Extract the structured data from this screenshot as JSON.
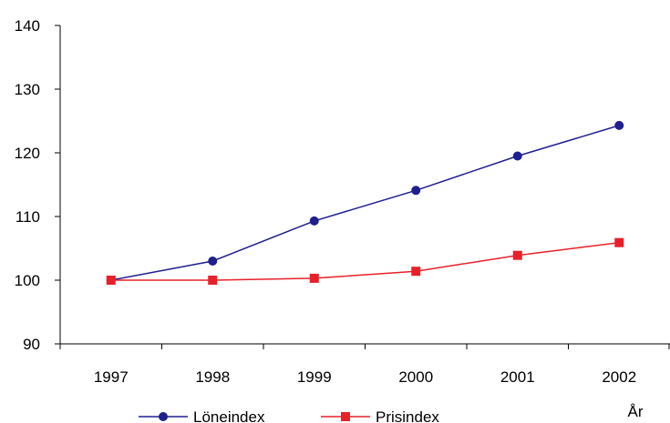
{
  "chart_data": {
    "type": "line",
    "title": "",
    "xlabel": "År",
    "ylabel": "",
    "categories": [
      "1997",
      "1998",
      "1999",
      "2000",
      "2001",
      "2002"
    ],
    "ylim": [
      90,
      140
    ],
    "yticks": [
      90,
      100,
      110,
      120,
      130,
      140
    ],
    "grid": false,
    "legend_position": "bottom",
    "series": [
      {
        "name": "Löneindex",
        "color": "#1f1f8f",
        "marker": "circle",
        "values": [
          100,
          103,
          109.3,
          114.1,
          119.5,
          124.3
        ]
      },
      {
        "name": "Prisindex",
        "color": "#e8202a",
        "marker": "square",
        "values": [
          100,
          100,
          100.3,
          101.4,
          103.9,
          105.9
        ]
      }
    ]
  }
}
